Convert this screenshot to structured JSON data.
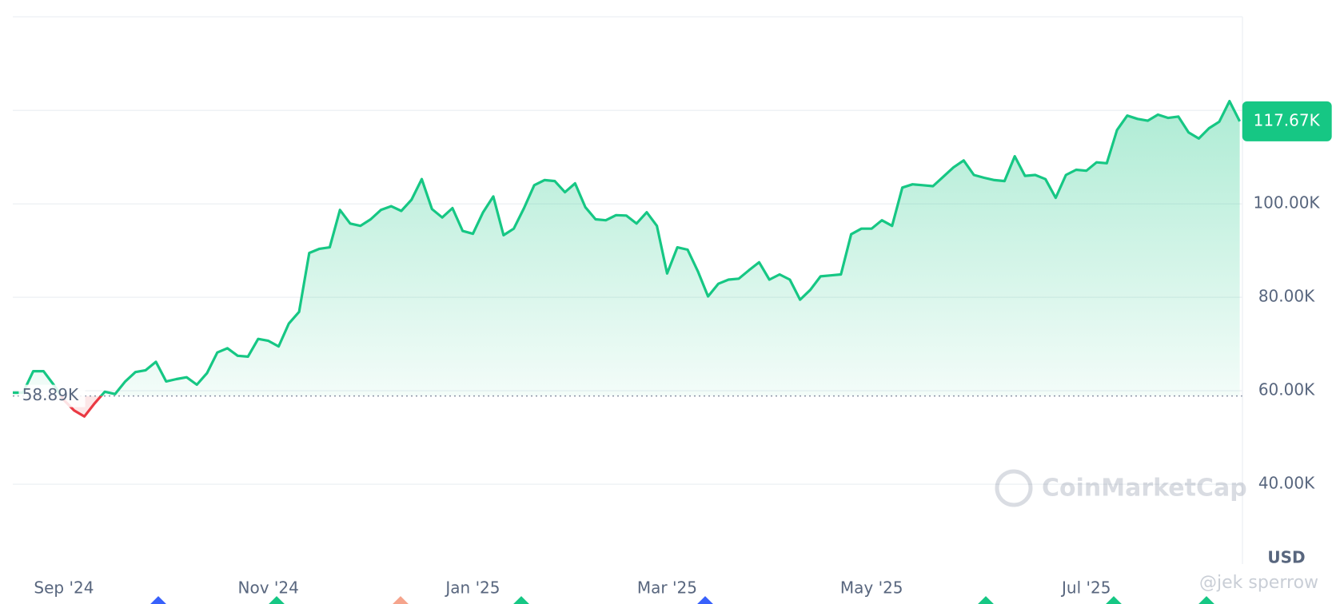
{
  "chart_data": {
    "type": "line",
    "categories": [
      null,
      null,
      null,
      null,
      null,
      "Sep '24",
      null,
      null,
      null,
      null,
      null,
      null,
      null,
      null,
      null,
      null,
      null,
      null,
      null,
      null,
      null,
      null,
      null,
      null,
      null,
      "Nov '24",
      null,
      null,
      null,
      null,
      null,
      null,
      null,
      null,
      null,
      null,
      null,
      null,
      null,
      null,
      null,
      null,
      null,
      null,
      null,
      "Jan '25",
      null,
      null,
      null,
      null,
      null,
      null,
      null,
      null,
      null,
      null,
      null,
      null,
      null,
      null,
      null,
      null,
      null,
      null,
      "Mar '25",
      null,
      null,
      null,
      null,
      null,
      null,
      null,
      null,
      null,
      null,
      null,
      null,
      null,
      null,
      null,
      null,
      null,
      null,
      null,
      "May '25",
      null,
      null,
      null,
      null,
      null,
      null,
      null,
      null,
      null,
      null,
      null,
      null,
      null,
      null,
      null,
      null,
      null,
      null,
      null,
      null,
      "Jul '25",
      null,
      null,
      null,
      null,
      null,
      null,
      null,
      null,
      null,
      null,
      null,
      null,
      null,
      null,
      null
    ],
    "series": [
      {
        "color": "#16c784",
        "below_color": "#ea3943",
        "values": [
          59600,
          59600,
          64200,
          64200,
          61300,
          58000,
          55800,
          54500,
          57300,
          59800,
          59300,
          62000,
          64000,
          64400,
          66200,
          62000,
          62500,
          62900,
          61300,
          63800,
          68200,
          69100,
          67500,
          67300,
          71100,
          70700,
          69500,
          74400,
          76900,
          89500,
          90400,
          90700,
          98700,
          95800,
          95300,
          96700,
          98700,
          99500,
          98500,
          100900,
          105300,
          98900,
          97100,
          99100,
          94200,
          93600,
          98200,
          101600,
          93300,
          94700,
          99100,
          104000,
          105100,
          104900,
          102500,
          104400,
          99300,
          96700,
          96500,
          97600,
          97500,
          95800,
          98200,
          95300,
          85100,
          90700,
          90200,
          85600,
          80200,
          82900,
          83800,
          84000,
          85800,
          87500,
          83800,
          84900,
          83800,
          79500,
          81600,
          84500,
          84700,
          84900,
          93500,
          94700,
          94700,
          96500,
          95300,
          103500,
          104200,
          104000,
          103800,
          105800,
          107800,
          109300,
          106200,
          105600,
          105100,
          104900,
          110200,
          106000,
          106200,
          105300,
          101300,
          106200,
          107300,
          107100,
          108900,
          108700,
          115800,
          118900,
          118200,
          117800,
          119100,
          118400,
          118700,
          115300,
          114000,
          116200,
          117600,
          122000,
          117670
        ]
      }
    ],
    "ylim": [
      23000,
      140000
    ],
    "yticks": [
      {
        "value": 40000,
        "label": "40.00K"
      },
      {
        "value": 60000,
        "label": "60.00K"
      },
      {
        "value": 80000,
        "label": "80.00K"
      },
      {
        "value": 100000,
        "label": "100.00K"
      },
      {
        "value": 120000,
        "label": ""
      }
    ],
    "grid": true,
    "y_label": "USD",
    "baseline": {
      "value": 58890,
      "label": "58.89K"
    },
    "current_price": {
      "value": 117670,
      "label": "117.67K"
    },
    "watermark": "CoinMarketCap",
    "credit": "@jek sperrow"
  }
}
